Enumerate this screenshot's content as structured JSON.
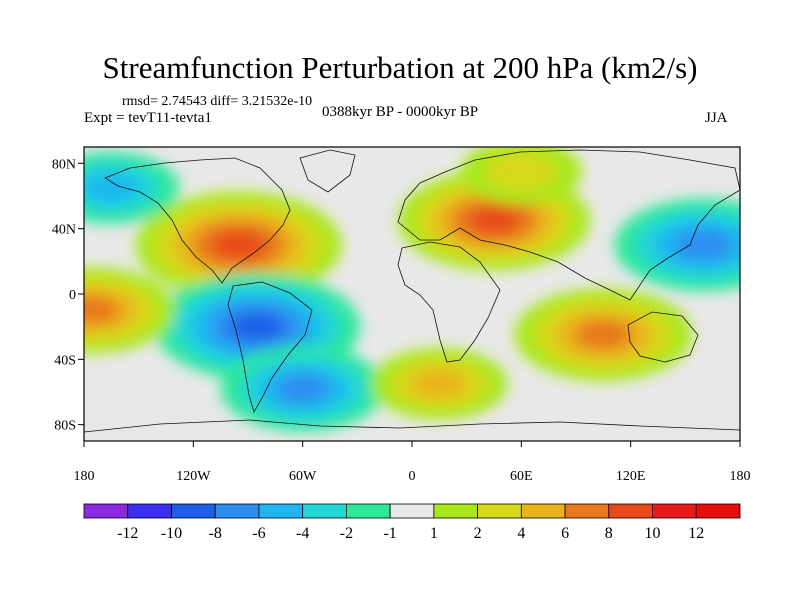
{
  "header": {
    "title": "Streamfunction Perturbation at 200 hPa (km2/s)",
    "stats": "rmsd= 2.74543 diff= 3.21532e-10",
    "experiment": "Expt = tevT11-tevta1",
    "period": "0388kyr BP - 0000kyr BP",
    "season": "JJA"
  },
  "chart_data": {
    "type": "heatmap",
    "title": "Streamfunction Perturbation at 200 hPa (km2/s)",
    "variable": "Streamfunction Perturbation",
    "units": "km2/s",
    "xlabel": "",
    "ylabel": "",
    "xlim": [
      -180,
      180
    ],
    "ylim": [
      -90,
      90
    ],
    "x_ticks": [
      -180,
      -120,
      -60,
      0,
      60,
      120,
      180
    ],
    "x_tick_labels": [
      "180",
      "120W",
      "60W",
      "0",
      "60E",
      "120E",
      "180"
    ],
    "y_ticks": [
      80,
      40,
      0,
      -40,
      -80
    ],
    "y_tick_labels": [
      "80N",
      "40N",
      "0",
      "40S",
      "80S"
    ],
    "colorbar": {
      "levels": [
        -12,
        -10,
        -8,
        -6,
        -4,
        -2,
        -1,
        1,
        2,
        4,
        6,
        8,
        10,
        12
      ],
      "labels": [
        "-12",
        "-10",
        "-8",
        "-6",
        "-4",
        "-2",
        "-1",
        "1",
        "2",
        "4",
        "6",
        "8",
        "10",
        "12"
      ],
      "colors": [
        "#8a2be2",
        "#3b2ff0",
        "#1f5ee8",
        "#2d8df0",
        "#1fb6f0",
        "#24d6d6",
        "#2ee89a",
        "#e8e8e8",
        "#a8e81a",
        "#d8d81a",
        "#e8b41a",
        "#e8781a",
        "#e84a1a",
        "#e81a1a"
      ]
    },
    "features": [
      {
        "name": "anomaly-north-america",
        "lon": -95,
        "lat": 30,
        "value": 9
      },
      {
        "name": "anomaly-central-asia",
        "lon": 45,
        "lat": 45,
        "value": 8
      },
      {
        "name": "anomaly-south-america-pacific",
        "lon": -85,
        "lat": -20,
        "value": -9
      },
      {
        "name": "anomaly-australia",
        "lon": 105,
        "lat": -25,
        "value": 7
      },
      {
        "name": "anomaly-west-pacific-north",
        "lon": 160,
        "lat": 30,
        "value": -7
      },
      {
        "name": "anomaly-central-pacific-tropics",
        "lon": -175,
        "lat": -10,
        "value": 6
      },
      {
        "name": "anomaly-southern-ocean-south-america",
        "lon": -60,
        "lat": -58,
        "value": -6
      },
      {
        "name": "anomaly-southern-ocean-indian",
        "lon": 15,
        "lat": -55,
        "value": 4
      },
      {
        "name": "anomaly-north-pacific",
        "lon": -165,
        "lat": 65,
        "value": -4
      },
      {
        "name": "anomaly-arctic-europe",
        "lon": 60,
        "lat": 75,
        "value": 3
      }
    ],
    "season": "JJA"
  }
}
